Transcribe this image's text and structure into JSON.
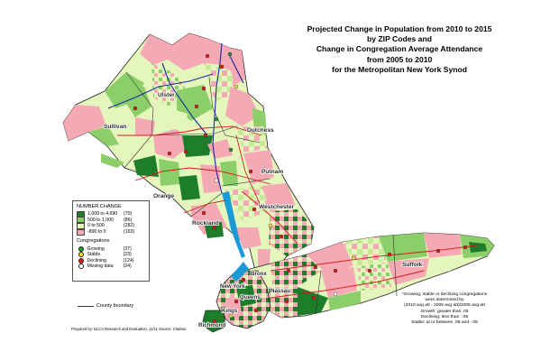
{
  "title": {
    "line1": "Projected Change in Population from 2010 to 2015",
    "line2": "by ZIP Codes and",
    "line3": "Change in Congregation Average Attendance",
    "line4": "from 2005 to 2010",
    "line5": "for the Metropolitan New York Synod"
  },
  "legend": {
    "heading": "NUMBER CHANGE",
    "classes": [
      {
        "range": "1,000 to 4,690",
        "count": "(70)",
        "color": "#1e7d2a"
      },
      {
        "range": "500 to 1,000",
        "count": "(86)",
        "color": "#8ccf6a"
      },
      {
        "range": "0 to 500",
        "count": "(282)",
        "color": "#e5f6bd"
      },
      {
        "range": "-890 to 0",
        "count": "(163)",
        "color": "#f5a9b4"
      }
    ],
    "congregations_heading": "Congregations",
    "congregations": [
      {
        "label": "Growing",
        "count": "(37)",
        "color": "#1f9a2a"
      },
      {
        "label": "Stable",
        "count": "(23)",
        "color": "#f2e24a"
      },
      {
        "label": "Declining",
        "count": "(124)",
        "color": "#d81e1e"
      },
      {
        "label": "Missing data",
        "count": "(24)",
        "color": "#ffffff"
      }
    ]
  },
  "county_boundary_label": "County boundary",
  "counties": {
    "ulster": "Ulster",
    "sullivan": "Sullivan",
    "dutchess": "Dutchess",
    "putnam": "Putnam",
    "orange": "Orange",
    "westchester": "Westchester",
    "rockland": "Rockland",
    "suffolk": "Suffolk",
    "bronx": "Bronx",
    "new_york": "New York",
    "nassau": "Nassau",
    "queens": "Queens",
    "kings": "Kings",
    "richmond": "Richmond"
  },
  "note": {
    "line1": "*Growing, stable or declining congregations",
    "line2": "were determined by",
    "line3": "(2010 avg att - 2005 avg att)/2005 avg att",
    "line4": "Growth:  greater than .05",
    "line5": "Declining:  less than -.05",
    "line6": "Stable:  at or between .05 and -.05"
  },
  "credit": "Prepared by: ELCA Research and Evaluation, 11/11  Source: Claritas",
  "colors": {
    "high": "#1e7d2a",
    "mid": "#8ccf6a",
    "low": "#e5f6bd",
    "neg": "#f5a9b4",
    "water": "#1a9ad6",
    "roads": "#d61a1a",
    "rivers": "#1a2a9a"
  }
}
